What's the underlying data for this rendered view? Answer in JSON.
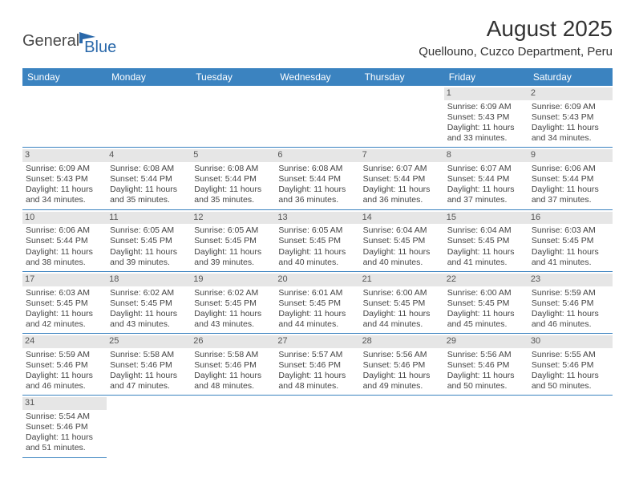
{
  "logo": {
    "text1": "General",
    "text2": "Blue"
  },
  "title": "August 2025",
  "location": "Quellouno, Cuzco Department, Peru",
  "colors": {
    "header_bg": "#3b83c0",
    "header_text": "#ffffff",
    "daynum_bg": "#e6e6e6",
    "row_border": "#3b83c0",
    "logo_dark": "#4a4a4a",
    "logo_blue": "#2968aa"
  },
  "dow": [
    "Sunday",
    "Monday",
    "Tuesday",
    "Wednesday",
    "Thursday",
    "Friday",
    "Saturday"
  ],
  "weeks": [
    [
      {
        "n": "",
        "sr": "",
        "ss": "",
        "dl": ""
      },
      {
        "n": "",
        "sr": "",
        "ss": "",
        "dl": ""
      },
      {
        "n": "",
        "sr": "",
        "ss": "",
        "dl": ""
      },
      {
        "n": "",
        "sr": "",
        "ss": "",
        "dl": ""
      },
      {
        "n": "",
        "sr": "",
        "ss": "",
        "dl": ""
      },
      {
        "n": "1",
        "sr": "Sunrise: 6:09 AM",
        "ss": "Sunset: 5:43 PM",
        "dl": "Daylight: 11 hours and 33 minutes."
      },
      {
        "n": "2",
        "sr": "Sunrise: 6:09 AM",
        "ss": "Sunset: 5:43 PM",
        "dl": "Daylight: 11 hours and 34 minutes."
      }
    ],
    [
      {
        "n": "3",
        "sr": "Sunrise: 6:09 AM",
        "ss": "Sunset: 5:43 PM",
        "dl": "Daylight: 11 hours and 34 minutes."
      },
      {
        "n": "4",
        "sr": "Sunrise: 6:08 AM",
        "ss": "Sunset: 5:44 PM",
        "dl": "Daylight: 11 hours and 35 minutes."
      },
      {
        "n": "5",
        "sr": "Sunrise: 6:08 AM",
        "ss": "Sunset: 5:44 PM",
        "dl": "Daylight: 11 hours and 35 minutes."
      },
      {
        "n": "6",
        "sr": "Sunrise: 6:08 AM",
        "ss": "Sunset: 5:44 PM",
        "dl": "Daylight: 11 hours and 36 minutes."
      },
      {
        "n": "7",
        "sr": "Sunrise: 6:07 AM",
        "ss": "Sunset: 5:44 PM",
        "dl": "Daylight: 11 hours and 36 minutes."
      },
      {
        "n": "8",
        "sr": "Sunrise: 6:07 AM",
        "ss": "Sunset: 5:44 PM",
        "dl": "Daylight: 11 hours and 37 minutes."
      },
      {
        "n": "9",
        "sr": "Sunrise: 6:06 AM",
        "ss": "Sunset: 5:44 PM",
        "dl": "Daylight: 11 hours and 37 minutes."
      }
    ],
    [
      {
        "n": "10",
        "sr": "Sunrise: 6:06 AM",
        "ss": "Sunset: 5:44 PM",
        "dl": "Daylight: 11 hours and 38 minutes."
      },
      {
        "n": "11",
        "sr": "Sunrise: 6:05 AM",
        "ss": "Sunset: 5:45 PM",
        "dl": "Daylight: 11 hours and 39 minutes."
      },
      {
        "n": "12",
        "sr": "Sunrise: 6:05 AM",
        "ss": "Sunset: 5:45 PM",
        "dl": "Daylight: 11 hours and 39 minutes."
      },
      {
        "n": "13",
        "sr": "Sunrise: 6:05 AM",
        "ss": "Sunset: 5:45 PM",
        "dl": "Daylight: 11 hours and 40 minutes."
      },
      {
        "n": "14",
        "sr": "Sunrise: 6:04 AM",
        "ss": "Sunset: 5:45 PM",
        "dl": "Daylight: 11 hours and 40 minutes."
      },
      {
        "n": "15",
        "sr": "Sunrise: 6:04 AM",
        "ss": "Sunset: 5:45 PM",
        "dl": "Daylight: 11 hours and 41 minutes."
      },
      {
        "n": "16",
        "sr": "Sunrise: 6:03 AM",
        "ss": "Sunset: 5:45 PM",
        "dl": "Daylight: 11 hours and 41 minutes."
      }
    ],
    [
      {
        "n": "17",
        "sr": "Sunrise: 6:03 AM",
        "ss": "Sunset: 5:45 PM",
        "dl": "Daylight: 11 hours and 42 minutes."
      },
      {
        "n": "18",
        "sr": "Sunrise: 6:02 AM",
        "ss": "Sunset: 5:45 PM",
        "dl": "Daylight: 11 hours and 43 minutes."
      },
      {
        "n": "19",
        "sr": "Sunrise: 6:02 AM",
        "ss": "Sunset: 5:45 PM",
        "dl": "Daylight: 11 hours and 43 minutes."
      },
      {
        "n": "20",
        "sr": "Sunrise: 6:01 AM",
        "ss": "Sunset: 5:45 PM",
        "dl": "Daylight: 11 hours and 44 minutes."
      },
      {
        "n": "21",
        "sr": "Sunrise: 6:00 AM",
        "ss": "Sunset: 5:45 PM",
        "dl": "Daylight: 11 hours and 44 minutes."
      },
      {
        "n": "22",
        "sr": "Sunrise: 6:00 AM",
        "ss": "Sunset: 5:45 PM",
        "dl": "Daylight: 11 hours and 45 minutes."
      },
      {
        "n": "23",
        "sr": "Sunrise: 5:59 AM",
        "ss": "Sunset: 5:46 PM",
        "dl": "Daylight: 11 hours and 46 minutes."
      }
    ],
    [
      {
        "n": "24",
        "sr": "Sunrise: 5:59 AM",
        "ss": "Sunset: 5:46 PM",
        "dl": "Daylight: 11 hours and 46 minutes."
      },
      {
        "n": "25",
        "sr": "Sunrise: 5:58 AM",
        "ss": "Sunset: 5:46 PM",
        "dl": "Daylight: 11 hours and 47 minutes."
      },
      {
        "n": "26",
        "sr": "Sunrise: 5:58 AM",
        "ss": "Sunset: 5:46 PM",
        "dl": "Daylight: 11 hours and 48 minutes."
      },
      {
        "n": "27",
        "sr": "Sunrise: 5:57 AM",
        "ss": "Sunset: 5:46 PM",
        "dl": "Daylight: 11 hours and 48 minutes."
      },
      {
        "n": "28",
        "sr": "Sunrise: 5:56 AM",
        "ss": "Sunset: 5:46 PM",
        "dl": "Daylight: 11 hours and 49 minutes."
      },
      {
        "n": "29",
        "sr": "Sunrise: 5:56 AM",
        "ss": "Sunset: 5:46 PM",
        "dl": "Daylight: 11 hours and 50 minutes."
      },
      {
        "n": "30",
        "sr": "Sunrise: 5:55 AM",
        "ss": "Sunset: 5:46 PM",
        "dl": "Daylight: 11 hours and 50 minutes."
      }
    ],
    [
      {
        "n": "31",
        "sr": "Sunrise: 5:54 AM",
        "ss": "Sunset: 5:46 PM",
        "dl": "Daylight: 11 hours and 51 minutes."
      },
      {
        "n": "",
        "sr": "",
        "ss": "",
        "dl": ""
      },
      {
        "n": "",
        "sr": "",
        "ss": "",
        "dl": ""
      },
      {
        "n": "",
        "sr": "",
        "ss": "",
        "dl": ""
      },
      {
        "n": "",
        "sr": "",
        "ss": "",
        "dl": ""
      },
      {
        "n": "",
        "sr": "",
        "ss": "",
        "dl": ""
      },
      {
        "n": "",
        "sr": "",
        "ss": "",
        "dl": ""
      }
    ]
  ]
}
